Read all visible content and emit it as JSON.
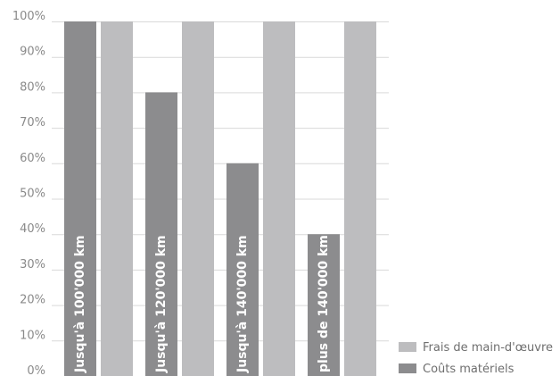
{
  "chart_data": {
    "type": "bar",
    "orientation": "vertical",
    "categories": [
      "Jusqu'à 100'000 km",
      "Jusqu'à 120'000 km",
      "Jusqu'à 140'000 km",
      "plus de 140'000 km"
    ],
    "series": [
      {
        "name": "Coûts matériels",
        "values": [
          100,
          80,
          60,
          40
        ],
        "color": "#8c8c8e"
      },
      {
        "name": "Frais de main-d'œuvre",
        "values": [
          100,
          100,
          100,
          100
        ],
        "color": "#bdbdbf"
      }
    ],
    "y_ticks": [
      "0%",
      "10%",
      "20%",
      "30%",
      "40%",
      "50%",
      "60%",
      "70%",
      "80%",
      "90%",
      "100%"
    ],
    "ylim": [
      0,
      100
    ],
    "grid": true,
    "legend_position": "bottom-right",
    "category_labels_inside_bars": true
  }
}
